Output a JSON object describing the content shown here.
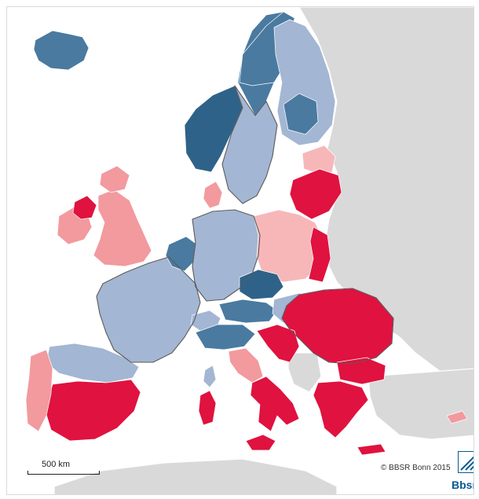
{
  "scale_label": "500 km",
  "copyright": "© BBSR Bonn 2015",
  "logo_text": "Bbsr",
  "colors": {
    "dark_blue": "#4a7aa0",
    "darkest_blue": "#2f6288",
    "light_blue": "#a3b6d3",
    "light_red": "#f29a9e",
    "pink": "#f7b7b9",
    "red": "#e0123f",
    "non_eu_land": "#d9d9d9"
  },
  "regions": [
    {
      "id": "iceland",
      "class": "dark_blue"
    },
    {
      "id": "norway",
      "class": "dark_blue"
    },
    {
      "id": "norway_west",
      "class": "darkest_blue"
    },
    {
      "id": "sweden",
      "class": "light_blue"
    },
    {
      "id": "sweden_north",
      "class": "dark_blue"
    },
    {
      "id": "finland",
      "class": "light_blue"
    },
    {
      "id": "finland_south",
      "class": "dark_blue"
    },
    {
      "id": "estonia_latvia",
      "class": "pink"
    },
    {
      "id": "lithuania_poland_east",
      "class": "red"
    },
    {
      "id": "uk",
      "class": "light_red"
    },
    {
      "id": "ireland",
      "class": "light_red"
    },
    {
      "id": "northern_ireland",
      "class": "red"
    },
    {
      "id": "denmark",
      "class": "light_red"
    },
    {
      "id": "france",
      "class": "light_blue"
    },
    {
      "id": "benelux",
      "class": "dark_blue"
    },
    {
      "id": "germany",
      "class": "light_blue"
    },
    {
      "id": "poland",
      "class": "pink"
    },
    {
      "id": "czechia",
      "class": "dark_blue"
    },
    {
      "id": "austria",
      "class": "dark_blue"
    },
    {
      "id": "switzerland",
      "class": "light_blue"
    },
    {
      "id": "italy_north",
      "class": "dark_blue"
    },
    {
      "id": "italy_south",
      "class": "red"
    },
    {
      "id": "spain",
      "class": "red"
    },
    {
      "id": "spain_north",
      "class": "light_blue"
    },
    {
      "id": "portugal",
      "class": "light_red"
    },
    {
      "id": "hungary",
      "class": "light_blue"
    },
    {
      "id": "balkans",
      "class": "red"
    },
    {
      "id": "greece",
      "class": "red"
    },
    {
      "id": "cyprus",
      "class": "light_red"
    },
    {
      "id": "sardinia",
      "class": "red"
    }
  ]
}
